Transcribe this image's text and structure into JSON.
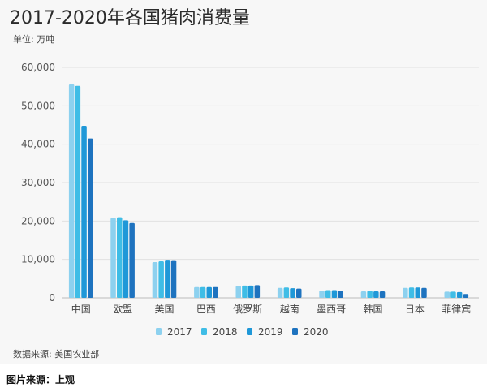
{
  "chart_data": {
    "type": "bar",
    "title": "2017-2020年各国猪肉消费量",
    "unit_label": "单位: 万吨",
    "xlabel": "",
    "ylabel": "",
    "ylim": [
      0,
      60000
    ],
    "yticks": [
      0,
      10000,
      20000,
      30000,
      40000,
      50000,
      60000
    ],
    "ytick_labels": [
      "0",
      "10,000",
      "20,000",
      "30,000",
      "40,000",
      "50,000",
      "60,000"
    ],
    "grid": true,
    "legend_position": "bottom-center",
    "categories": [
      "中国",
      "欧盟",
      "美国",
      "巴西",
      "俄罗斯",
      "越南",
      "墨西哥",
      "韩国",
      "日本",
      "菲律宾"
    ],
    "series": [
      {
        "name": "2017",
        "color": "#8dd1ef",
        "values": [
          55600,
          20800,
          9300,
          2800,
          3100,
          2600,
          1900,
          1700,
          2600,
          1600
        ]
      },
      {
        "name": "2018",
        "color": "#3fbde6",
        "values": [
          55200,
          21000,
          9500,
          2800,
          3200,
          2700,
          2000,
          1800,
          2700,
          1600
        ]
      },
      {
        "name": "2019",
        "color": "#1f98d8",
        "values": [
          44800,
          20200,
          9900,
          2800,
          3200,
          2500,
          2000,
          1700,
          2700,
          1500
        ]
      },
      {
        "name": "2020",
        "color": "#1e73bf",
        "values": [
          41500,
          19500,
          9800,
          2800,
          3300,
          2400,
          1900,
          1700,
          2600,
          1000
        ]
      }
    ],
    "source_note": "数据来源: 美国农业部"
  },
  "footer": {
    "credit": "图片来源：上观"
  }
}
